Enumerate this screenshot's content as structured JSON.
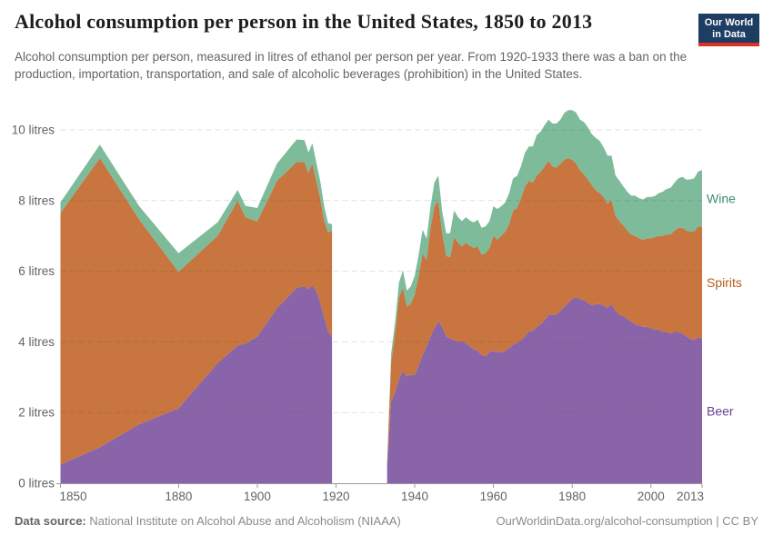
{
  "header": {
    "title": "Alcohol consumption per person in the United States, 1850 to 2013",
    "subtitle": "Alcohol consumption per person, measured in litres of ethanol per person per year. From 1920-1933 there was a ban on the production, importation, transportation, and sale of alcoholic beverages (prohibition) in the United States.",
    "logo": {
      "line1": "Our World",
      "line2": "in Data",
      "bg_color": "#1d3d63",
      "accent_color": "#dc3223"
    }
  },
  "footer": {
    "source_label": "Data source:",
    "source_text": " National Institute on Alcohol Abuse and Alcoholism (NIAAA)",
    "link_text": "OurWorldinData.org/alcohol-consumption | CC BY"
  },
  "chart_data": {
    "type": "area",
    "stacked": true,
    "unit": "litres of ethanol per person per year",
    "x_ticks": [
      1850,
      1880,
      1900,
      1920,
      1940,
      1960,
      1980,
      2000,
      2013
    ],
    "y_ticks": [
      0,
      2,
      4,
      6,
      8,
      10
    ],
    "y_tick_suffix": " litres",
    "x_domain": [
      1850,
      2013
    ],
    "ylim": [
      0,
      10.6
    ],
    "grid": "dashed-horizontal",
    "no_data_gap_years": [
      1920,
      1932
    ],
    "series_bottom_to_top": [
      "Beer",
      "Spirits",
      "Wine"
    ],
    "fill_colors": {
      "Beer": "#8a64a8",
      "Spirits": "#c8753f",
      "Wine": "#7dbb9a"
    },
    "label_colors": {
      "Beer": "#6d3e91",
      "Spirits": "#ba581b",
      "Wine": "#3c8e6e"
    },
    "axis_color": "#9a9a9a",
    "tick_label_color": "#636363",
    "point_format": "[year, beer, spirits, wine]",
    "segments": [
      {
        "points": [
          [
            1850,
            0.53,
            7.12,
            0.3
          ],
          [
            1860,
            1.02,
            8.18,
            0.38
          ],
          [
            1870,
            1.67,
            5.79,
            0.38
          ],
          [
            1880,
            2.12,
            3.86,
            0.53
          ],
          [
            1890,
            3.41,
            3.6,
            0.38
          ],
          [
            1895,
            3.9,
            4.1,
            0.3
          ],
          [
            1897,
            3.95,
            3.58,
            0.32
          ],
          [
            1900,
            4.15,
            3.26,
            0.38
          ],
          [
            1905,
            4.96,
            3.6,
            0.49
          ],
          [
            1910,
            5.53,
            3.56,
            0.64
          ],
          [
            1912,
            5.57,
            3.52,
            0.62
          ],
          [
            1913,
            5.49,
            3.3,
            0.57
          ],
          [
            1914,
            5.6,
            3.45,
            0.57
          ],
          [
            1915,
            5.45,
            3.1,
            0.53
          ],
          [
            1916,
            5.1,
            2.95,
            0.49
          ],
          [
            1917,
            4.7,
            2.72,
            0.42
          ],
          [
            1918,
            4.3,
            2.8,
            0.26
          ],
          [
            1919,
            4.15,
            2.99,
            0.19
          ]
        ]
      },
      {
        "points": [
          [
            1933,
            0.49,
            0.08,
            0.02
          ],
          [
            1934,
            2.31,
            1.1,
            0.26
          ],
          [
            1935,
            2.57,
            1.67,
            0.3
          ],
          [
            1936,
            2.95,
            2.31,
            0.42
          ],
          [
            1937,
            3.18,
            2.35,
            0.49
          ],
          [
            1938,
            3.03,
            1.97,
            0.45
          ],
          [
            1939,
            3.07,
            2.01,
            0.49
          ],
          [
            1940,
            3.07,
            2.27,
            0.53
          ],
          [
            1941,
            3.33,
            2.54,
            0.6
          ],
          [
            1942,
            3.63,
            2.87,
            0.68
          ],
          [
            1943,
            3.86,
            2.46,
            0.6
          ],
          [
            1944,
            4.16,
            3.07,
            0.6
          ],
          [
            1945,
            4.39,
            3.45,
            0.68
          ],
          [
            1946,
            4.58,
            3.41,
            0.72
          ],
          [
            1947,
            4.43,
            2.65,
            0.6
          ],
          [
            1948,
            4.16,
            2.27,
            0.64
          ],
          [
            1949,
            4.09,
            2.31,
            0.68
          ],
          [
            1950,
            4.05,
            2.91,
            0.76
          ],
          [
            1951,
            4.01,
            2.8,
            0.72
          ],
          [
            1952,
            4.01,
            2.69,
            0.72
          ],
          [
            1953,
            3.97,
            2.84,
            0.72
          ],
          [
            1954,
            3.88,
            2.84,
            0.72
          ],
          [
            1955,
            3.79,
            2.87,
            0.72
          ],
          [
            1956,
            3.75,
            2.95,
            0.76
          ],
          [
            1957,
            3.63,
            2.84,
            0.76
          ],
          [
            1958,
            3.6,
            2.91,
            0.76
          ],
          [
            1959,
            3.71,
            2.95,
            0.76
          ],
          [
            1960,
            3.75,
            3.26,
            0.83
          ],
          [
            1961,
            3.71,
            3.18,
            0.87
          ],
          [
            1962,
            3.71,
            3.3,
            0.83
          ],
          [
            1963,
            3.75,
            3.37,
            0.83
          ],
          [
            1964,
            3.82,
            3.52,
            0.87
          ],
          [
            1965,
            3.93,
            3.79,
            0.91
          ],
          [
            1966,
            3.97,
            3.82,
            0.91
          ],
          [
            1967,
            4.05,
            4.01,
            0.91
          ],
          [
            1968,
            4.16,
            4.24,
            0.95
          ],
          [
            1969,
            4.31,
            4.24,
            0.98
          ],
          [
            1970,
            4.31,
            4.2,
            1.02
          ],
          [
            1971,
            4.43,
            4.28,
            1.14
          ],
          [
            1972,
            4.5,
            4.31,
            1.14
          ],
          [
            1973,
            4.62,
            4.35,
            1.17
          ],
          [
            1974,
            4.77,
            4.35,
            1.17
          ],
          [
            1975,
            4.77,
            4.2,
            1.21
          ],
          [
            1976,
            4.77,
            4.16,
            1.25
          ],
          [
            1977,
            4.88,
            4.16,
            1.25
          ],
          [
            1978,
            5.0,
            4.16,
            1.32
          ],
          [
            1979,
            5.11,
            4.09,
            1.36
          ],
          [
            1980,
            5.22,
            3.94,
            1.4
          ],
          [
            1981,
            5.26,
            3.79,
            1.44
          ],
          [
            1982,
            5.22,
            3.63,
            1.44
          ],
          [
            1983,
            5.18,
            3.56,
            1.48
          ],
          [
            1984,
            5.11,
            3.48,
            1.48
          ],
          [
            1985,
            5.03,
            3.41,
            1.44
          ],
          [
            1986,
            5.07,
            3.22,
            1.48
          ],
          [
            1987,
            5.07,
            3.14,
            1.48
          ],
          [
            1988,
            5.03,
            3.07,
            1.4
          ],
          [
            1989,
            4.96,
            2.95,
            1.36
          ],
          [
            1990,
            5.07,
            2.95,
            1.25
          ],
          [
            1991,
            4.88,
            2.69,
            1.14
          ],
          [
            1992,
            4.77,
            2.65,
            1.14
          ],
          [
            1993,
            4.73,
            2.57,
            1.1
          ],
          [
            1994,
            4.65,
            2.5,
            1.1
          ],
          [
            1995,
            4.58,
            2.46,
            1.1
          ],
          [
            1996,
            4.5,
            2.5,
            1.14
          ],
          [
            1997,
            4.47,
            2.46,
            1.14
          ],
          [
            1998,
            4.43,
            2.46,
            1.14
          ],
          [
            1999,
            4.43,
            2.5,
            1.17
          ],
          [
            2000,
            4.39,
            2.54,
            1.17
          ],
          [
            2001,
            4.35,
            2.61,
            1.17
          ],
          [
            2002,
            4.35,
            2.65,
            1.21
          ],
          [
            2003,
            4.28,
            2.72,
            1.25
          ],
          [
            2004,
            4.28,
            2.76,
            1.29
          ],
          [
            2005,
            4.24,
            2.8,
            1.32
          ],
          [
            2006,
            4.28,
            2.87,
            1.36
          ],
          [
            2007,
            4.28,
            2.95,
            1.4
          ],
          [
            2008,
            4.24,
            2.99,
            1.44
          ],
          [
            2009,
            4.16,
            2.99,
            1.44
          ],
          [
            2010,
            4.09,
            3.03,
            1.48
          ],
          [
            2011,
            4.05,
            3.07,
            1.51
          ],
          [
            2012,
            4.13,
            3.14,
            1.55
          ],
          [
            2013,
            4.09,
            3.18,
            1.59
          ]
        ]
      }
    ]
  }
}
